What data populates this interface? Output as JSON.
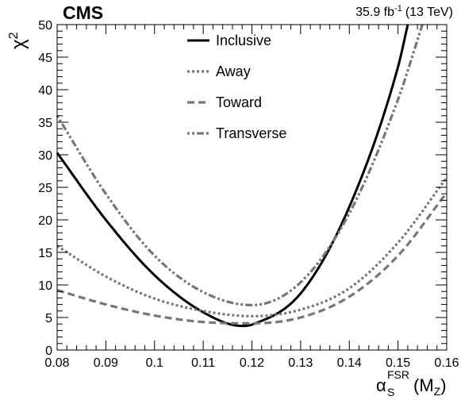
{
  "chart_data": {
    "type": "line",
    "title": "CMS",
    "luminosity_label": "35.9 fb",
    "luminosity_exponent": "-1",
    "energy_label": "(13 TeV)",
    "ylabel_base": "χ",
    "ylabel_exp": "2",
    "xlabel_base": "α",
    "xlabel_sub": "S",
    "xlabel_sup": "FSR",
    "xlabel_tail_open": "(M",
    "xlabel_tail_sub": "Z",
    "xlabel_tail_close": ")",
    "xlim": [
      0.08,
      0.16
    ],
    "ylim": [
      0,
      50
    ],
    "xticks": [
      "0.08",
      "0.09",
      "0.1",
      "0.11",
      "0.12",
      "0.13",
      "0.14",
      "0.15",
      "0.16"
    ],
    "yticks": [
      "0",
      "5",
      "10",
      "15",
      "20",
      "25",
      "30",
      "35",
      "40",
      "45",
      "50"
    ],
    "legend_position": "top-center",
    "grid": false,
    "series": [
      {
        "name": "Inclusive",
        "color": "#000000",
        "style": "solid",
        "x": [
          0.08,
          0.09,
          0.1,
          0.11,
          0.118,
          0.12,
          0.13,
          0.14,
          0.15,
          0.152
        ],
        "y": [
          30.3,
          20.0,
          11.5,
          5.8,
          3.7,
          3.9,
          8.7,
          22.0,
          43.5,
          50.0
        ]
      },
      {
        "name": "Away",
        "color": "#777777",
        "style": "dotted",
        "x": [
          0.08,
          0.09,
          0.1,
          0.11,
          0.12,
          0.13,
          0.14,
          0.15,
          0.16
        ],
        "y": [
          16.0,
          11.3,
          7.9,
          6.0,
          5.2,
          6.2,
          9.5,
          16.5,
          26.5
        ]
      },
      {
        "name": "Toward",
        "color": "#777777",
        "style": "dashed",
        "x": [
          0.08,
          0.09,
          0.1,
          0.11,
          0.12,
          0.13,
          0.14,
          0.15,
          0.16
        ],
        "y": [
          9.2,
          7.0,
          5.3,
          4.3,
          4.1,
          5.0,
          8.2,
          14.5,
          24.2
        ]
      },
      {
        "name": "Transverse",
        "color": "#777777",
        "style": "dashdot",
        "x": [
          0.08,
          0.09,
          0.1,
          0.11,
          0.12,
          0.13,
          0.14,
          0.15,
          0.155
        ],
        "y": [
          36.0,
          24.0,
          14.5,
          8.9,
          6.9,
          10.4,
          21.0,
          38.5,
          50.0
        ]
      }
    ]
  }
}
